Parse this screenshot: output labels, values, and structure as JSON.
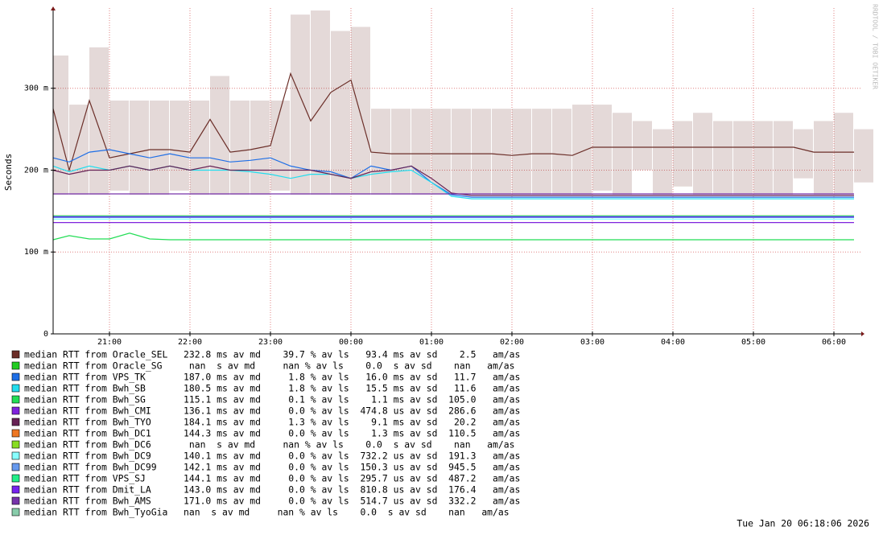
{
  "chart_data": {
    "type": "line",
    "y_label": "Seconds",
    "watermark": "RRDTOOL / TOBI OETIKER",
    "timestamp": "Tue Jan 20 06:18:06 2026",
    "xlim": [
      20.3,
      30.34
    ],
    "xticks": [
      {
        "value": 21,
        "label": "21:00"
      },
      {
        "value": 22,
        "label": "22:00"
      },
      {
        "value": 23,
        "label": "23:00"
      },
      {
        "value": 24,
        "label": "00:00"
      },
      {
        "value": 25,
        "label": "01:00"
      },
      {
        "value": 26,
        "label": "02:00"
      },
      {
        "value": 27,
        "label": "03:00"
      },
      {
        "value": 28,
        "label": "04:00"
      },
      {
        "value": 29,
        "label": "05:00"
      },
      {
        "value": 30,
        "label": "06:00"
      }
    ],
    "ylim": [
      0,
      0.398
    ],
    "yticks": [
      0,
      {
        "value": 0.1,
        "label": "100 m"
      },
      {
        "value": 0.2,
        "label": "200 m"
      },
      {
        "value": 0.3,
        "label": "300 m"
      }
    ],
    "grid": true,
    "x": [
      20.3,
      20.5,
      20.75,
      21.0,
      21.25,
      21.5,
      21.75,
      22.0,
      22.25,
      22.5,
      22.75,
      23.0,
      23.25,
      23.5,
      23.75,
      24.0,
      24.25,
      24.5,
      24.75,
      25.0,
      25.25,
      25.5,
      25.75,
      26.0,
      26.25,
      26.5,
      26.75,
      27.0,
      27.25,
      27.5,
      27.75,
      28.0,
      28.25,
      28.5,
      28.75,
      29.0,
      29.25,
      29.5,
      29.75,
      30.0,
      30.25
    ],
    "series": [
      {
        "name": "median RTT from Oracle_SEL",
        "stats": "232.8 ms av md    39.7 % av ls   93.4 ms av sd    2.5   am/as",
        "color": "#6b2e28",
        "values": [
          0.275,
          0.2,
          0.285,
          0.215,
          0.22,
          0.225,
          0.225,
          0.222,
          0.262,
          0.222,
          0.225,
          0.23,
          0.318,
          0.26,
          0.295,
          0.31,
          0.222,
          0.22,
          0.22,
          0.22,
          0.22,
          0.22,
          0.22,
          0.218,
          0.22,
          0.22,
          0.218,
          0.228,
          0.228,
          0.228,
          0.228,
          0.228,
          0.228,
          0.228,
          0.228,
          0.228,
          0.228,
          0.228,
          0.222,
          0.222,
          0.222
        ],
        "range_low": [
          0.17,
          0.17,
          0.17,
          0.175,
          0.17,
          0.17,
          0.175,
          0.17,
          0.17,
          0.17,
          0.17,
          0.175,
          0.17,
          0.17,
          0.17,
          0.17,
          0.17,
          0.17,
          0.17,
          0.17,
          0.17,
          0.17,
          0.17,
          0.17,
          0.17,
          0.17,
          0.17,
          0.175,
          0.17,
          0.2,
          0.17,
          0.18,
          0.17,
          0.17,
          0.17,
          0.17,
          0.17,
          0.19,
          0.17,
          0.17,
          0.185
        ],
        "range_high": [
          0.34,
          0.28,
          0.35,
          0.285,
          0.285,
          0.285,
          0.285,
          0.285,
          0.315,
          0.285,
          0.285,
          0.285,
          0.39,
          0.395,
          0.37,
          0.375,
          0.275,
          0.275,
          0.275,
          0.275,
          0.275,
          0.275,
          0.275,
          0.275,
          0.275,
          0.275,
          0.28,
          0.28,
          0.27,
          0.26,
          0.25,
          0.26,
          0.27,
          0.26,
          0.26,
          0.26,
          0.26,
          0.25,
          0.26,
          0.27,
          0.25
        ]
      },
      {
        "name": "median RTT from Oracle_SG",
        "stats": " nan  s av md     nan % av ls    0.0  s av sd    nan   am/as",
        "color": "#22cc22",
        "values": [
          null,
          null,
          null,
          null,
          null,
          null,
          null,
          null,
          null,
          null,
          null,
          null,
          null,
          null,
          null,
          null,
          null,
          null,
          null,
          null,
          null,
          null,
          null,
          null,
          null,
          null,
          null,
          null,
          null,
          null,
          null,
          null,
          null,
          null,
          null,
          null,
          null,
          null,
          null,
          null,
          null
        ]
      },
      {
        "name": "median RTT from VPS_TK",
        "stats": "187.0 ms av md     1.8 % av ls   16.0 ms av sd   11.7   am/as",
        "color": "#1e6ee6",
        "values": [
          0.215,
          0.21,
          0.222,
          0.225,
          0.22,
          0.215,
          0.22,
          0.215,
          0.215,
          0.21,
          0.212,
          0.215,
          0.205,
          0.2,
          0.198,
          0.19,
          0.205,
          0.2,
          0.205,
          0.185,
          0.17,
          0.167,
          0.167,
          0.167,
          0.167,
          0.167,
          0.167,
          0.167,
          0.167,
          0.167,
          0.167,
          0.167,
          0.167,
          0.167,
          0.167,
          0.167,
          0.167,
          0.167,
          0.167,
          0.167,
          0.167
        ]
      },
      {
        "name": "median RTT from Bwh_SB",
        "stats": "180.5 ms av md     1.8 % av ls   15.5 ms av sd   11.6   am/as",
        "color": "#22ddee",
        "values": [
          0.205,
          0.198,
          0.205,
          0.2,
          0.205,
          0.2,
          0.205,
          0.2,
          0.2,
          0.2,
          0.198,
          0.195,
          0.19,
          0.195,
          0.195,
          0.19,
          0.195,
          0.198,
          0.2,
          0.185,
          0.168,
          0.165,
          0.165,
          0.165,
          0.165,
          0.165,
          0.165,
          0.165,
          0.165,
          0.165,
          0.165,
          0.165,
          0.165,
          0.165,
          0.165,
          0.165,
          0.165,
          0.165,
          0.165,
          0.165,
          0.165
        ]
      },
      {
        "name": "median RTT from Bwh_SG",
        "stats": "115.1 ms av md     0.1 % av ls    1.1 ms av sd  105.0   am/as",
        "color": "#22dd55",
        "values": [
          0.115,
          0.12,
          0.116,
          0.116,
          0.123,
          0.116,
          0.115,
          0.115,
          0.115,
          0.115,
          0.115,
          0.115,
          0.115,
          0.115,
          0.115,
          0.115,
          0.115,
          0.115,
          0.115,
          0.115,
          0.115,
          0.115,
          0.115,
          0.115,
          0.115,
          0.115,
          0.115,
          0.115,
          0.115,
          0.115,
          0.115,
          0.115,
          0.115,
          0.115,
          0.115,
          0.115,
          0.115,
          0.115,
          0.115,
          0.115,
          0.115
        ]
      },
      {
        "name": "median RTT from Bwh_CMI",
        "stats": "136.1 ms av md     0.0 % av ls  474.8 us av sd  286.6   am/as",
        "color": "#7f22dd",
        "values": [
          0.136,
          0.136,
          0.136,
          0.136,
          0.136,
          0.136,
          0.136,
          0.136,
          0.136,
          0.136,
          0.136,
          0.136,
          0.136,
          0.136,
          0.136,
          0.136,
          0.136,
          0.136,
          0.136,
          0.136,
          0.136,
          0.136,
          0.136,
          0.136,
          0.136,
          0.136,
          0.136,
          0.136,
          0.136,
          0.136,
          0.136,
          0.136,
          0.136,
          0.136,
          0.136,
          0.136,
          0.136,
          0.136,
          0.136,
          0.136,
          0.136
        ]
      },
      {
        "name": "median RTT from Bwh_TYO",
        "stats": "184.1 ms av md     1.3 % av ls    9.1 ms av sd   20.2   am/as",
        "color": "#662255",
        "values": [
          0.2,
          0.195,
          0.2,
          0.2,
          0.205,
          0.2,
          0.205,
          0.2,
          0.205,
          0.2,
          0.2,
          0.2,
          0.2,
          0.2,
          0.195,
          0.19,
          0.198,
          0.2,
          0.205,
          0.19,
          0.172,
          0.169,
          0.169,
          0.169,
          0.169,
          0.169,
          0.169,
          0.169,
          0.169,
          0.169,
          0.169,
          0.169,
          0.169,
          0.169,
          0.169,
          0.169,
          0.169,
          0.169,
          0.169,
          0.169,
          0.169
        ]
      },
      {
        "name": "median RTT from Bwh_DC1",
        "stats": "144.3 ms av md     0.0 % av ls    1.3 ms av sd  110.5   am/as",
        "color": "#ee7722",
        "values": [
          0.1443,
          0.1443,
          0.1443,
          0.1443,
          0.1443,
          0.1443,
          0.1443,
          0.1443,
          0.1443,
          0.1443,
          0.1443,
          0.1443,
          0.1443,
          0.1443,
          0.1443,
          0.1443,
          0.1443,
          0.1443,
          0.1443,
          0.1443,
          0.1443,
          0.1443,
          0.1443,
          0.1443,
          0.1443,
          0.1443,
          0.1443,
          0.1443,
          0.1443,
          0.1443,
          0.1443,
          0.1443,
          0.1443,
          0.1443,
          0.1443,
          0.1443,
          0.1443,
          0.1443,
          0.1443,
          0.1443,
          0.1443
        ]
      },
      {
        "name": "median RTT from Bwh_DC6",
        "stats": " nan  s av md     nan % av ls    0.0  s av sd    nan   am/as",
        "color": "#88dd22",
        "values": [
          null,
          null,
          null,
          null,
          null,
          null,
          null,
          null,
          null,
          null,
          null,
          null,
          null,
          null,
          null,
          null,
          null,
          null,
          null,
          null,
          null,
          null,
          null,
          null,
          null,
          null,
          null,
          null,
          null,
          null,
          null,
          null,
          null,
          null,
          null,
          null,
          null,
          null,
          null,
          null,
          null
        ]
      },
      {
        "name": "median RTT from Bwh_DC9",
        "stats": "140.1 ms av md     0.0 % av ls  732.2 us av sd  191.3   am/as",
        "color": "#88ffff",
        "values": [
          0.1401,
          0.1401,
          0.1401,
          0.1401,
          0.1401,
          0.1401,
          0.1401,
          0.1401,
          0.1401,
          0.1401,
          0.1401,
          0.1401,
          0.1401,
          0.1401,
          0.1401,
          0.1401,
          0.1401,
          0.1401,
          0.1401,
          0.1401,
          0.1401,
          0.1401,
          0.1401,
          0.1401,
          0.1401,
          0.1401,
          0.1401,
          0.1401,
          0.1401,
          0.1401,
          0.1401,
          0.1401,
          0.1401,
          0.1401,
          0.1401,
          0.1401,
          0.1401,
          0.1401,
          0.1401,
          0.1401,
          0.1401
        ]
      },
      {
        "name": "median RTT from Bwh_DC99",
        "stats": "142.1 ms av md     0.0 % av ls  150.3 us av sd  945.5   am/as",
        "color": "#6699ee",
        "values": [
          0.1421,
          0.1421,
          0.1421,
          0.1421,
          0.1421,
          0.1421,
          0.1421,
          0.1421,
          0.1421,
          0.1421,
          0.1421,
          0.1421,
          0.1421,
          0.1421,
          0.1421,
          0.1421,
          0.1421,
          0.1421,
          0.1421,
          0.1421,
          0.1421,
          0.1421,
          0.1421,
          0.1421,
          0.1421,
          0.1421,
          0.1421,
          0.1421,
          0.1421,
          0.1421,
          0.1421,
          0.1421,
          0.1421,
          0.1421,
          0.1421,
          0.1421,
          0.1421,
          0.1421,
          0.1421,
          0.1421,
          0.1421
        ]
      },
      {
        "name": "median RTT from VPS_SJ",
        "stats": "144.1 ms av md     0.0 % av ls  295.7 us av sd  487.2   am/as",
        "color": "#22ee88",
        "values": [
          0.1441,
          0.1441,
          0.1441,
          0.1441,
          0.1441,
          0.1441,
          0.1441,
          0.1441,
          0.1441,
          0.1441,
          0.1441,
          0.1441,
          0.1441,
          0.1441,
          0.1441,
          0.1441,
          0.1441,
          0.1441,
          0.1441,
          0.1441,
          0.1441,
          0.1441,
          0.1441,
          0.1441,
          0.1441,
          0.1441,
          0.1441,
          0.1441,
          0.1441,
          0.1441,
          0.1441,
          0.1441,
          0.1441,
          0.1441,
          0.1441,
          0.1441,
          0.1441,
          0.1441,
          0.1441,
          0.1441,
          0.1441
        ]
      },
      {
        "name": "median RTT from Dmit_LA",
        "stats": "143.0 ms av md     0.0 % av ls  810.8 us av sd  176.4   am/as",
        "color": "#7722ee",
        "values": [
          0.143,
          0.143,
          0.143,
          0.143,
          0.143,
          0.143,
          0.143,
          0.143,
          0.143,
          0.143,
          0.143,
          0.143,
          0.143,
          0.143,
          0.143,
          0.143,
          0.143,
          0.143,
          0.143,
          0.143,
          0.143,
          0.143,
          0.143,
          0.143,
          0.143,
          0.143,
          0.143,
          0.143,
          0.143,
          0.143,
          0.143,
          0.143,
          0.143,
          0.143,
          0.143,
          0.143,
          0.143,
          0.143,
          0.143,
          0.143,
          0.143
        ]
      },
      {
        "name": "median RTT from Bwh_AMS",
        "stats": "171.0 ms av md     0.0 % av ls  514.7 us av sd  332.2   am/as",
        "color": "#7733aa",
        "values": [
          0.171,
          0.171,
          0.171,
          0.171,
          0.171,
          0.171,
          0.171,
          0.171,
          0.171,
          0.171,
          0.171,
          0.171,
          0.171,
          0.171,
          0.171,
          0.171,
          0.171,
          0.171,
          0.171,
          0.171,
          0.171,
          0.171,
          0.171,
          0.171,
          0.171,
          0.171,
          0.171,
          0.171,
          0.171,
          0.171,
          0.171,
          0.171,
          0.171,
          0.171,
          0.171,
          0.171,
          0.171,
          0.171,
          0.171,
          0.171,
          0.171
        ]
      },
      {
        "name": "median RTT from Bwh_TyoGia",
        "stats": "nan  s av md     nan % av ls    0.0  s av sd    nan   am/as",
        "color": "#88ccaa",
        "values": [
          null,
          null,
          null,
          null,
          null,
          null,
          null,
          null,
          null,
          null,
          null,
          null,
          null,
          null,
          null,
          null,
          null,
          null,
          null,
          null,
          null,
          null,
          null,
          null,
          null,
          null,
          null,
          null,
          null,
          null,
          null,
          null,
          null,
          null,
          null,
          null,
          null,
          null,
          null,
          null,
          null
        ]
      }
    ]
  }
}
